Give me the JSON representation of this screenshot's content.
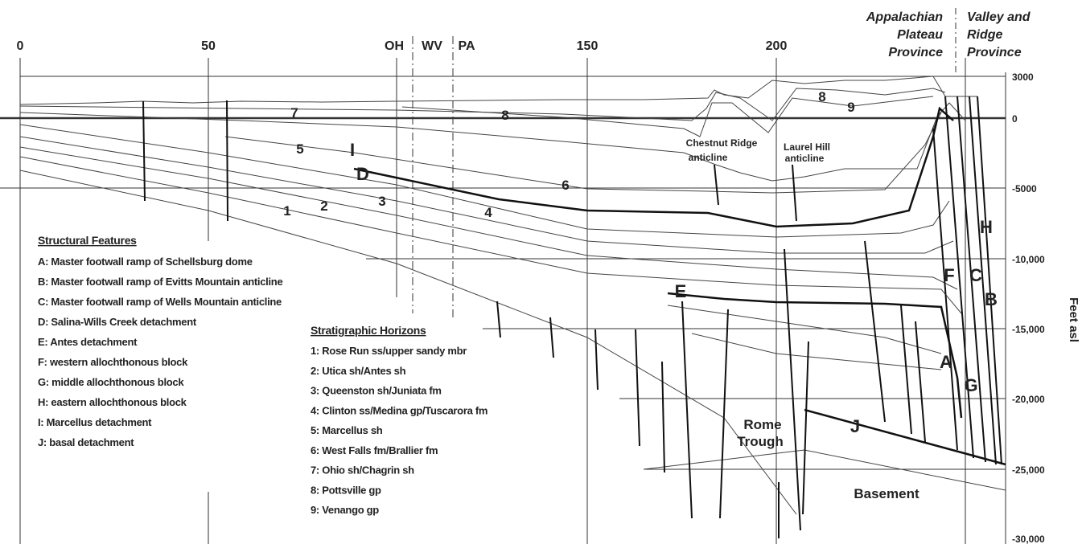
{
  "distance_labels": [
    "0",
    "50",
    "150",
    "200"
  ],
  "state_labels": [
    "OH",
    "WV",
    "PA"
  ],
  "provinces": [
    [
      "Appalachian",
      "Plateau",
      "Province"
    ],
    [
      "Valley and",
      "Ridge",
      "Province"
    ]
  ],
  "elevation_labels": [
    "3000",
    "0",
    "-5000",
    "-10,000",
    "-15,000",
    "-20,000",
    "-25,000",
    "-30,000"
  ],
  "axis_title": "Feet asl",
  "map_labels": [
    "7",
    "8",
    "5",
    "I",
    "D",
    "6",
    "1",
    "2",
    "3",
    "4",
    "8",
    "9",
    "E",
    "J",
    "A",
    "B",
    "C",
    "F",
    "G",
    "H"
  ],
  "annotations": [
    [
      "Chestnut Ridge",
      "anticline"
    ],
    [
      "Laurel Hill",
      "anticline"
    ],
    [
      "Rome",
      "Trough"
    ],
    [
      "Basement"
    ]
  ],
  "structural_features": {
    "title": "Structural Features",
    "items": [
      "A: Master footwall ramp of Schellsburg dome",
      "B: Master footwall ramp of Evitts Mountain anticline",
      "C: Master footwall ramp of Wells Mountain anticline",
      "D: Salina-Wills Creek detachment",
      "E: Antes detachment",
      "F: western allochthonous block",
      "G: middle allochthonous block",
      "H: eastern allochthonous block",
      "I: Marcellus detachment",
      "J: basal detachment"
    ]
  },
  "stratigraphic_horizons": {
    "title": "Stratigraphic Horizons",
    "items": [
      "1: Rose Run ss/upper sandy mbr",
      "2: Utica sh/Antes sh",
      "3: Queenston sh/Juniata fm",
      "4: Clinton ss/Medina gp/Tuscarora fm",
      "5: Marcellus sh",
      "6: West Falls fm/Brallier fm",
      "7: Ohio sh/Chagrin sh",
      "8: Pottsville gp",
      "9: Venango gp"
    ]
  }
}
